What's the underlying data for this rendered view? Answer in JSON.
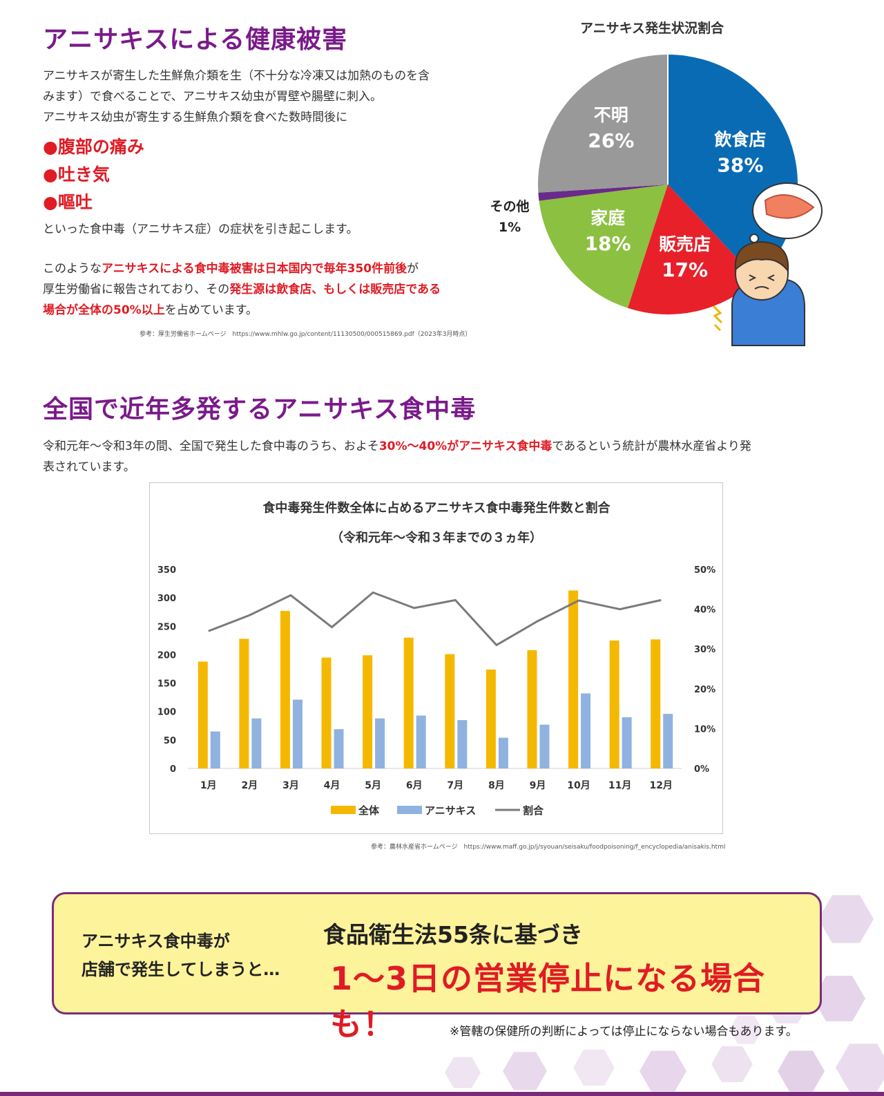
{
  "section1": {
    "heading": "アニサキスによる健康被害",
    "para1_line1": "アニサキスが寄生した生鮮魚介類を生（不十分な冷凍又は加熱のものを含",
    "para1_line2": "みます）で食べることで、アニサキス幼虫が胃壁や腸壁に刺入。",
    "para1_line3": "アニサキス幼虫が寄生する生鮮魚介類を食べた数時間後に",
    "bullets": [
      "●腹部の痛み",
      "●吐き気",
      "●嘔吐"
    ],
    "para2": "といった食中毒（アニサキス症）の症状を引き起こします。",
    "para3_a": "このような",
    "para3_b": "アニサキスによる食中毒被害は日本国内で毎年350件前後",
    "para3_c": "が",
    "para3_d": "厚生労働省に報告されており、その",
    "para3_e": "発生源は飲食店、もしくは販売店である",
    "para3_f": "場合が全体の50%以上",
    "para3_g": "を占めています。",
    "reference": "参考：厚生労働省ホームページ　https://www.mhlw.go.jp/content/11130500/000515869.pdf（2023年3月時点）"
  },
  "section2": {
    "heading": "全国で近年多発するアニサキス食中毒",
    "para_a": "令和元年〜令和3年の間、全国で発生した食中毒のうち、およそ",
    "para_b": "30%〜40%がアニサキス食中毒",
    "para_c": "であるという統計が農林水産省より発",
    "para_d": "表されています。",
    "reference": "参考：農林水産省ホームページ　https://www.maff.go.jp/j/syouan/seisaku/foodpoisoning/f_encyclopedia/anisakis.html"
  },
  "callout": {
    "left_line1": "アニサキス食中毒が",
    "left_line2": "店舗で発生してしまうと…",
    "right_line1": "食品衛生法55条に基づき",
    "right_line2": "1〜3日の営業停止になる場合も！",
    "note": "※管轄の保健所の判断によっては停止にならない場合もあります。"
  },
  "colors": {
    "heading": "#7a1a8a",
    "red": "#e01b24",
    "pie_restaurant": "#0a6bb5",
    "pie_store": "#e8202a",
    "pie_home": "#8cc040",
    "pie_other": "#6a2a8a",
    "pie_unknown": "#999999",
    "bar_total": "#f5b800",
    "bar_anisakis": "#8fb2e0",
    "line_ratio": "#7a7a7a"
  },
  "chart_data": [
    {
      "type": "pie",
      "title": "アニサキス発生状況割合",
      "slices": [
        {
          "label": "飲食店",
          "value": 38,
          "value_label": "38%"
        },
        {
          "label": "販売店",
          "value": 17,
          "value_label": "17%"
        },
        {
          "label": "家庭",
          "value": 18,
          "value_label": "18%"
        },
        {
          "label": "その他",
          "value": 1,
          "value_label": "1%"
        },
        {
          "label": "不明",
          "value": 26,
          "value_label": "26%"
        }
      ]
    },
    {
      "type": "bar",
      "title": "食中毒発生件数全体に占めるアニサキス食中毒発生件数と割合",
      "subtitle": "（令和元年〜令和３年までの３ヵ年）",
      "categories": [
        "1月",
        "2月",
        "3月",
        "4月",
        "5月",
        "6月",
        "7月",
        "8月",
        "9月",
        "10月",
        "11月",
        "12月"
      ],
      "series": [
        {
          "name": "全体",
          "kind": "bar",
          "axis": "left",
          "values": [
            188,
            228,
            277,
            195,
            199,
            230,
            201,
            174,
            208,
            313,
            225,
            227
          ]
        },
        {
          "name": "アニサキス",
          "kind": "bar",
          "axis": "left",
          "values": [
            65,
            88,
            121,
            69,
            88,
            93,
            85,
            54,
            77,
            132,
            90,
            96
          ]
        },
        {
          "name": "割合",
          "kind": "line",
          "axis": "right",
          "values": [
            34.5,
            38.5,
            43.5,
            35.5,
            44.2,
            40.3,
            42.3,
            31.0,
            37.0,
            42.2,
            40.0,
            42.3
          ]
        }
      ],
      "yticks_left": [
        "0",
        "50",
        "100",
        "150",
        "200",
        "250",
        "300",
        "350"
      ],
      "yticks_right": [
        "0%",
        "10%",
        "20%",
        "30%",
        "40%",
        "50%"
      ],
      "ylim_left": [
        0,
        350
      ],
      "ylim_right": [
        0,
        50
      ],
      "legend_position": "bottom",
      "grid": false
    }
  ]
}
